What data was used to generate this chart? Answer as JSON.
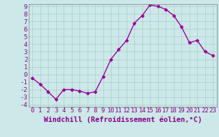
{
  "x": [
    0,
    1,
    2,
    3,
    4,
    5,
    6,
    7,
    8,
    9,
    10,
    11,
    12,
    13,
    14,
    15,
    16,
    17,
    18,
    19,
    20,
    21,
    22,
    23
  ],
  "y": [
    -0.5,
    -1.3,
    -2.3,
    -3.3,
    -2.0,
    -2.0,
    -2.2,
    -2.5,
    -2.3,
    -0.3,
    2.0,
    3.3,
    4.5,
    6.8,
    7.8,
    9.2,
    9.0,
    8.6,
    7.8,
    6.3,
    4.2,
    4.5,
    3.0,
    2.5
  ],
  "xlabel": "Windchill (Refroidissement éolien,°C)",
  "ylim": [
    -4,
    9
  ],
  "xlim": [
    -0.5,
    23.5
  ],
  "yticks": [
    -4,
    -3,
    -2,
    -1,
    0,
    1,
    2,
    3,
    4,
    5,
    6,
    7,
    8,
    9
  ],
  "xticks": [
    0,
    1,
    2,
    3,
    4,
    5,
    6,
    7,
    8,
    9,
    10,
    11,
    12,
    13,
    14,
    15,
    16,
    17,
    18,
    19,
    20,
    21,
    22,
    23
  ],
  "line_color": "#990099",
  "marker": "D",
  "marker_size": 2.5,
  "bg_color": "#cce8e8",
  "grid_color": "#aacccc",
  "tick_label_color": "#880088",
  "xlabel_color": "#880088",
  "xlabel_fontsize": 7.5,
  "tick_fontsize": 6.5,
  "linewidth": 1.0
}
